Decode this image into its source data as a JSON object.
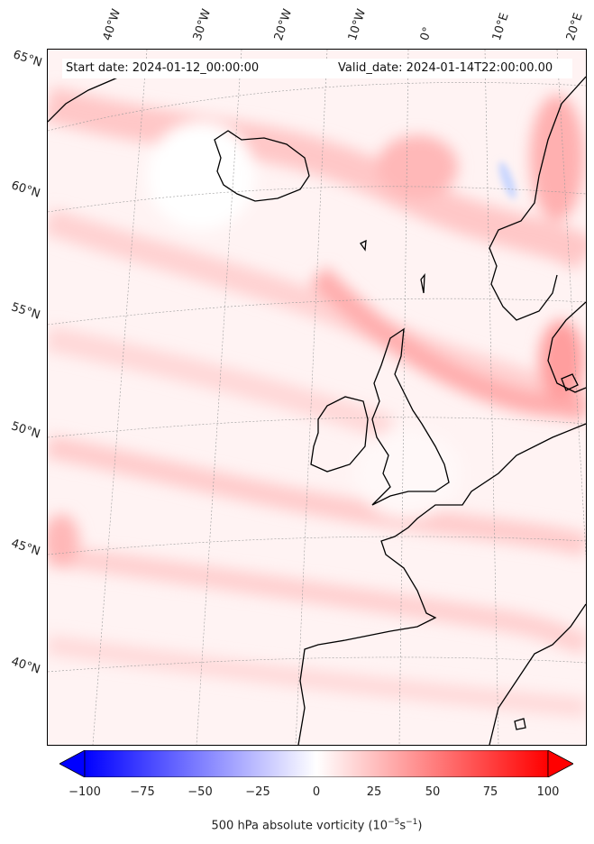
{
  "chart_data": {
    "type": "heatmap",
    "header": {
      "start_date": "Start date: 2024-01-12_00:00:00",
      "valid_date": "Valid_date: 2024-01-14T22:00:00.00"
    },
    "longitude_labels": [
      "40°W",
      "30°W",
      "20°W",
      "10°W",
      "0°",
      "10°E",
      "20°E"
    ],
    "latitude_labels": [
      "65°N",
      "60°N",
      "55°N",
      "50°N",
      "45°N",
      "40°N"
    ],
    "colorbar": {
      "ticks": [
        "−100",
        "−75",
        "−50",
        "−25",
        "0",
        "25",
        "50",
        "75",
        "100"
      ],
      "range": [
        -100,
        100
      ],
      "colormap": "bwr",
      "extend": "both",
      "label_text": "500 hPa absolute vorticity (10",
      "label_unit_exp1": "−5",
      "label_mid": "s",
      "label_unit_exp2": "−1",
      "label_end": ")"
    },
    "colors": {
      "negative": "#0000ff",
      "zero": "#ffffff",
      "positive": "#ff0000",
      "coastline": "#000000"
    }
  }
}
